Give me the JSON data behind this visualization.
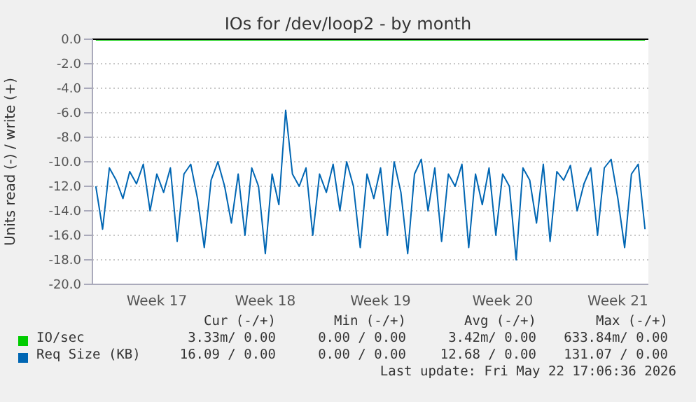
{
  "chart_data": {
    "type": "line",
    "title": "IOs for /dev/loop2 - by month",
    "ylabel": "Units read (-) / write (+)",
    "categories": [
      null,
      null,
      null,
      null,
      null,
      null,
      null,
      null,
      null,
      "Week 17",
      null,
      null,
      null,
      null,
      null,
      null,
      null,
      null,
      null,
      null,
      null,
      null,
      null,
      null,
      null,
      "Week 18",
      null,
      null,
      null,
      null,
      null,
      null,
      null,
      null,
      null,
      null,
      null,
      null,
      null,
      null,
      null,
      null,
      "Week 19",
      null,
      null,
      null,
      null,
      null,
      null,
      null,
      null,
      null,
      null,
      null,
      null,
      null,
      null,
      null,
      null,
      null,
      "Week 20",
      null,
      null,
      null,
      null,
      null,
      null,
      null,
      null,
      null,
      null,
      null,
      null,
      null,
      null,
      null,
      null,
      "Week 21",
      null,
      null,
      null,
      null
    ],
    "series": [
      {
        "name": "IO/sec",
        "color": "#00cc00",
        "values": [
          0,
          0,
          0,
          0,
          0,
          0,
          0,
          0,
          0,
          0,
          0,
          0,
          0,
          0,
          0,
          0,
          0,
          0,
          0,
          0,
          0,
          0,
          0,
          0,
          0,
          0,
          0,
          0,
          0,
          0,
          0,
          0,
          0,
          0,
          0,
          0,
          0,
          0,
          0,
          0,
          0,
          0,
          0,
          0,
          0,
          0,
          0,
          0,
          0,
          0,
          0,
          0,
          0,
          0,
          0,
          0,
          0,
          0,
          0,
          0,
          0,
          0,
          0,
          0,
          0,
          0,
          0,
          0,
          0,
          0,
          0,
          0,
          0,
          0,
          0,
          0,
          0,
          0,
          0,
          0,
          0,
          0
        ]
      },
      {
        "name": "Req Size (KB)",
        "color": "#0066b3",
        "values": [
          -12,
          -15.5,
          -10.5,
          -11.5,
          -13,
          -10.8,
          -11.8,
          -10.2,
          -14,
          -11,
          -12.5,
          -10.5,
          -16.5,
          -11,
          -10.2,
          -13,
          -17,
          -11.5,
          -10,
          -12,
          -15,
          -11,
          -16,
          -10.5,
          -12,
          -17.5,
          -11,
          -13.5,
          -5.8,
          -11,
          -12,
          -10.5,
          -16,
          -11,
          -12.5,
          -10.2,
          -14,
          -10,
          -12,
          -17,
          -11,
          -13,
          -10.5,
          -16,
          -10,
          -12.5,
          -17.5,
          -11,
          -9.8,
          -14,
          -10.5,
          -16.5,
          -11,
          -12,
          -10.2,
          -17,
          -11,
          -13.5,
          -10.5,
          -16,
          -11,
          -12,
          -18,
          -10.5,
          -11.5,
          -15,
          -10.2,
          -16.5,
          -10.8,
          -11.5,
          -10.3,
          -14,
          -11.8,
          -10.5,
          -16,
          -10.5,
          -9.8,
          -13,
          -17,
          -11,
          -10.2,
          -15.5
        ]
      }
    ],
    "ylim": [
      -20,
      0
    ],
    "yticks": [
      {
        "value": -20,
        "label": "-20.0"
      },
      {
        "value": -18,
        "label": "-18.0"
      },
      {
        "value": -16,
        "label": "-16.0"
      },
      {
        "value": -14,
        "label": "-14.0"
      },
      {
        "value": -12,
        "label": "-12.0"
      },
      {
        "value": -10,
        "label": "-10.0"
      },
      {
        "value": -8,
        "label": "-8.0"
      },
      {
        "value": -6,
        "label": "-6.0"
      },
      {
        "value": -4,
        "label": "-4.0"
      },
      {
        "value": -2,
        "label": "-2.0"
      },
      {
        "value": 0,
        "label": "0.0"
      }
    ],
    "ref_lines": [
      {
        "axis": "y",
        "value": 0,
        "color": "#000000"
      }
    ],
    "grid": "y",
    "legend": "bottom",
    "marker": "none",
    "line_style": "solid",
    "annotations": [
      "Cur (-/+)",
      "Min (-/+)",
      "Avg (-/+)",
      "Max (-/+)",
      "3.33m/ 0.00",
      "0.00 / 0.00",
      "3.42m/ 0.00",
      "633.84m/ 0.00",
      "16.09 / 0.00",
      "0.00 / 0.00",
      "12.68 / 0.00",
      "131.07 / 0.00",
      "Last update: Fri May 22 17:06:36 2026"
    ]
  }
}
